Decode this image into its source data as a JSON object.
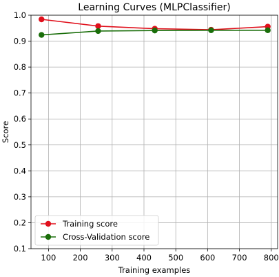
{
  "chart_data": {
    "type": "line",
    "title": "Learning Curves (MLPClassifier)",
    "xlabel": "Training examples",
    "ylabel": "Score",
    "xlim": [
      45,
      820
    ],
    "ylim": [
      0.1,
      1.0
    ],
    "xticks": [
      100,
      200,
      300,
      400,
      500,
      600,
      700,
      800
    ],
    "yticks": [
      0.1,
      0.2,
      0.3,
      0.4,
      0.5,
      0.6,
      0.7,
      0.8,
      0.9,
      1.0
    ],
    "grid": true,
    "legend_position": "lower-left",
    "x": [
      78,
      256,
      434,
      611,
      789
    ],
    "series": [
      {
        "name": "Training score",
        "color": "#e0101c",
        "values": [
          0.984,
          0.958,
          0.948,
          0.944,
          0.956
        ]
      },
      {
        "name": "Cross-Validation score",
        "color": "#1a6e0a",
        "values": [
          0.924,
          0.939,
          0.941,
          0.942,
          0.942
        ]
      }
    ]
  }
}
